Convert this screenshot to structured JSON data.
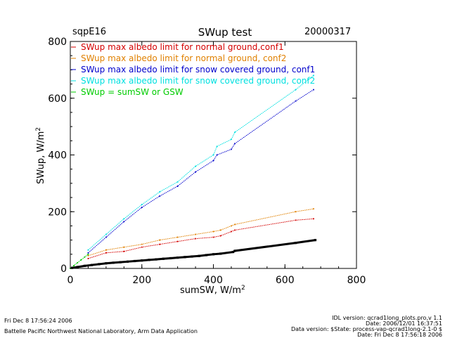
{
  "header": {
    "site": "sqpE16",
    "title": "SWup test",
    "date": "20000317"
  },
  "footer": {
    "left_line1": "Fri Dec  8 17:56:24 2006",
    "left_line2": "Battelle Pacific Northwest National Laboratory, Arm Data Application",
    "right_line1": "IDL version: qcrad1long_plots.pro,v 1.1",
    "right_line2": "Date: 2006/12/01 16:37:51",
    "right_line3": "Data version: $State: process-vap-qcrad1long-2.1-0 $",
    "right_line4": "Date: Fri Dec  8 17:56:18 2006"
  },
  "chart_data": {
    "type": "scatter",
    "xlabel": "sumSW, W/m",
    "ylabel": "SWup, W/m",
    "label_superscript": "2",
    "xlim": [
      0,
      800
    ],
    "ylim": [
      0,
      800
    ],
    "xticks": [
      "0",
      "200",
      "400",
      "600",
      "800"
    ],
    "yticks": [
      "0",
      "200",
      "400",
      "600",
      "800"
    ],
    "grid": false,
    "legend_position": "top-left",
    "series": [
      {
        "name": "SWup max albedo limit for normal ground,conf1",
        "color": "#d40000",
        "x": [
          50,
          100,
          150,
          200,
          250,
          300,
          350,
          400,
          420,
          450,
          460,
          630,
          680
        ],
        "y": [
          35,
          55,
          60,
          75,
          85,
          95,
          105,
          110,
          115,
          130,
          135,
          170,
          175
        ]
      },
      {
        "name": "SWup max albedo limit for normal ground, conf2",
        "color": "#e08000",
        "x": [
          50,
          100,
          150,
          200,
          250,
          300,
          350,
          400,
          420,
          450,
          460,
          630,
          680
        ],
        "y": [
          45,
          65,
          75,
          85,
          100,
          110,
          120,
          130,
          135,
          150,
          155,
          200,
          210
        ]
      },
      {
        "name": "SWup max albedo limit for snow covered ground, conf1",
        "color": "#0000cc",
        "x": [
          50,
          100,
          150,
          200,
          250,
          300,
          350,
          400,
          410,
          450,
          460,
          630,
          680
        ],
        "y": [
          55,
          110,
          165,
          215,
          255,
          290,
          340,
          380,
          400,
          420,
          440,
          590,
          630
        ]
      },
      {
        "name": "SWup max albedo limit for snow covered ground, conf2",
        "color": "#00e0e0",
        "x": [
          50,
          100,
          150,
          200,
          250,
          300,
          350,
          400,
          410,
          450,
          460,
          630,
          680
        ],
        "y": [
          65,
          120,
          175,
          225,
          270,
          305,
          360,
          400,
          430,
          455,
          480,
          630,
          680
        ]
      },
      {
        "name": "SWup = sumSW or GSW",
        "color": "#00cc00",
        "x": [
          0,
          10,
          20,
          30,
          40,
          50
        ],
        "y": [
          0,
          10,
          20,
          30,
          40,
          50
        ]
      },
      {
        "name": "",
        "color": "#000000",
        "x": [
          5,
          20,
          40,
          60,
          80,
          100,
          120,
          140,
          160,
          180,
          200,
          220,
          240,
          260,
          280,
          300,
          320,
          340,
          360,
          380,
          400,
          420,
          455,
          460,
          630,
          685
        ],
        "y": [
          2,
          5,
          9,
          12,
          15,
          18,
          20,
          22,
          24,
          26,
          28,
          30,
          32,
          34,
          36,
          38,
          40,
          42,
          44,
          47,
          50,
          52,
          58,
          62,
          90,
          100
        ]
      }
    ]
  }
}
